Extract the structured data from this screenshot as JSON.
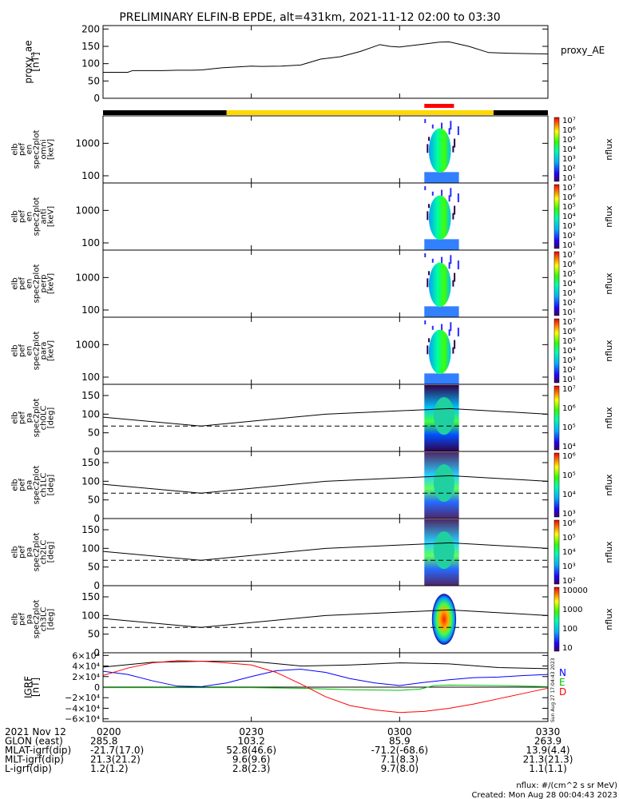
{
  "title": "PRELIMINARY ELFIN-B EPDE, alt=431km, 2021-11-12 02:00 to 03:30",
  "chart_data": {
    "type": "spectrogram",
    "x_range": [
      "2021-11-12 02:00",
      "2021-11-12 03:30"
    ],
    "x_ticks": [
      "0200",
      "0230",
      "0300",
      "0330"
    ],
    "grid": false,
    "status_bar": [
      {
        "from": "02:00",
        "to": "02:25",
        "color": "#000000"
      },
      {
        "from": "02:25",
        "to": "03:19",
        "color": "#ffd800"
      },
      {
        "from": "03:19",
        "to": "03:30",
        "color": "#000000"
      }
    ],
    "science_zone_marker": {
      "from": "03:05",
      "to": "03:11",
      "color": "#ff0000"
    },
    "active_interval": [
      "03:05",
      "03:12"
    ],
    "panels": [
      {
        "id": "proxy_ae",
        "type": "line",
        "ylabel": [
          "proxy_ae",
          "[nT]"
        ],
        "legend": "proxy_AE",
        "ylim": [
          0,
          210
        ],
        "yticks": [
          "200",
          "150",
          "100",
          "50",
          "0"
        ],
        "series": [
          {
            "name": "proxy_AE",
            "x": [
              "02:00",
              "02:05",
              "02:06",
              "02:12",
              "02:15",
              "02:18",
              "02:20",
              "02:24",
              "02:30",
              "02:32",
              "02:36",
              "02:40",
              "02:44",
              "02:48",
              "02:52",
              "02:56",
              "02:58",
              "03:00",
              "03:04",
              "03:08",
              "03:10",
              "03:14",
              "03:18",
              "03:22",
              "03:26",
              "03:30"
            ],
            "y": [
              75,
              75,
              80,
              80,
              81,
              81,
              82,
              88,
              93,
              92,
              93,
              96,
              113,
              120,
              135,
              155,
              150,
              148,
              155,
              162,
              163,
              150,
              132,
              130,
              129,
              128
            ]
          }
        ]
      },
      {
        "id": "en_omni",
        "type": "spectrogram",
        "ylabel": [
          "elb",
          "pef",
          "en",
          "spec2plot",
          "omni",
          "[keV]"
        ],
        "yscale": "log",
        "ylim": [
          60,
          7000
        ],
        "yticks": [
          "1000",
          "100"
        ],
        "colorbar": {
          "label": "nflux",
          "ticks": [
            "10⁷",
            "10⁶",
            "10⁵",
            "10⁴",
            "10³",
            "10²",
            "10¹"
          ]
        }
      },
      {
        "id": "en_anti",
        "type": "spectrogram",
        "ylabel": [
          "elb",
          "pef",
          "en",
          "spec2plot",
          "anti",
          "[keV]"
        ],
        "yscale": "log",
        "ylim": [
          60,
          7000
        ],
        "yticks": [
          "1000",
          "100"
        ],
        "colorbar": {
          "label": "nflux",
          "ticks": [
            "10⁷",
            "10⁶",
            "10⁵",
            "10⁴",
            "10³",
            "10²",
            "10¹"
          ]
        }
      },
      {
        "id": "en_perp",
        "type": "spectrogram",
        "ylabel": [
          "elb",
          "pef",
          "en",
          "spec2plot",
          "perp",
          "[keV]"
        ],
        "yscale": "log",
        "ylim": [
          60,
          7000
        ],
        "yticks": [
          "1000",
          "100"
        ],
        "colorbar": {
          "label": "nflux",
          "ticks": [
            "10⁷",
            "10⁶",
            "10⁵",
            "10⁴",
            "10³",
            "10²",
            "10¹"
          ]
        }
      },
      {
        "id": "en_para",
        "type": "spectrogram",
        "ylabel": [
          "elb",
          "pef",
          "en",
          "spec2plot",
          "para",
          "[keV]"
        ],
        "yscale": "log",
        "ylim": [
          60,
          7000
        ],
        "yticks": [
          "1000",
          "100"
        ],
        "colorbar": {
          "label": "nflux",
          "ticks": [
            "10⁷",
            "10⁶",
            "10⁵",
            "10⁴",
            "10³",
            "10²",
            "10¹"
          ]
        }
      },
      {
        "id": "pa_ch0",
        "type": "spectrogram",
        "ylabel": [
          "elb",
          "pef",
          "pa",
          "spec2plot",
          "ch0LC",
          "[deg]"
        ],
        "ylim": [
          0,
          180
        ],
        "yticks": [
          "150",
          "100",
          "50",
          "0"
        ],
        "colorbar": {
          "label": "nflux",
          "ticks": [
            "10⁷",
            "10⁶",
            "10⁵",
            "10⁴"
          ]
        }
      },
      {
        "id": "pa_ch1",
        "type": "spectrogram",
        "ylabel": [
          "elb",
          "pef",
          "pa",
          "spec2plot",
          "ch1LC",
          "[deg]"
        ],
        "ylim": [
          0,
          180
        ],
        "yticks": [
          "150",
          "100",
          "50",
          "0"
        ],
        "colorbar": {
          "label": "nflux",
          "ticks": [
            "10⁶",
            "10⁵",
            "10⁴",
            "10³"
          ]
        }
      },
      {
        "id": "pa_ch2",
        "type": "spectrogram",
        "ylabel": [
          "elb",
          "pef",
          "pa",
          "spec2plot",
          "ch2LC",
          "[deg]"
        ],
        "ylim": [
          0,
          180
        ],
        "yticks": [
          "150",
          "100",
          "50",
          "0"
        ],
        "colorbar": {
          "label": "nflux",
          "ticks": [
            "10⁶",
            "10⁵",
            "10⁴",
            "10³",
            "10²"
          ]
        }
      },
      {
        "id": "pa_ch3",
        "type": "spectrogram",
        "ylabel": [
          "elb",
          "pef",
          "pa",
          "spec2plot",
          "ch3LC",
          "[deg]"
        ],
        "ylim": [
          0,
          180
        ],
        "yticks": [
          "150",
          "100",
          "50",
          "0"
        ],
        "colorbar": {
          "label": "nflux",
          "ticks": [
            "10000",
            "1000",
            "100",
            "10"
          ]
        }
      },
      {
        "id": "igrf",
        "type": "line",
        "ylabel": [
          "IGRF",
          "[nT]"
        ],
        "ylim": [
          -65000,
          65000
        ],
        "yticks": [
          "6×10⁴",
          "4×10⁴",
          "2×10⁴",
          "0",
          "−2×10⁴",
          "−4×10⁴",
          "−6×10⁴"
        ],
        "legend": [
          {
            "label": "N",
            "color": "#0000ff"
          },
          {
            "label": "E",
            "color": "#00c000"
          },
          {
            "label": "D",
            "color": "#ff0000"
          }
        ],
        "series": [
          {
            "color": "#000000",
            "x": [
              "02:00",
              "02:10",
              "02:20",
              "02:30",
              "02:40",
              "02:50",
              "03:00",
              "03:10",
              "03:20",
              "03:30"
            ],
            "y": [
              38000,
              47000,
              49000,
              49000,
              40000,
              42000,
              46000,
              44000,
              37000,
              35000
            ]
          },
          {
            "color": "#0000ff",
            "x": [
              "02:00",
              "02:05",
              "02:10",
              "02:15",
              "02:20",
              "02:25",
              "02:30",
              "02:35",
              "02:40",
              "02:45",
              "02:50",
              "02:55",
              "03:00",
              "03:05",
              "03:10",
              "03:15",
              "03:20",
              "03:25",
              "03:30"
            ],
            "y": [
              30000,
              24000,
              12000,
              2000,
              1000,
              8000,
              20000,
              31000,
              34000,
              28000,
              16000,
              8000,
              3000,
              9000,
              14000,
              18000,
              19000,
              22000,
              24000
            ]
          },
          {
            "color": "#00c000",
            "x": [
              "02:00",
              "02:10",
              "02:20",
              "02:30",
              "02:40",
              "02:50",
              "03:00",
              "03:04",
              "03:07",
              "03:10",
              "03:20",
              "03:30"
            ],
            "y": [
              -1000,
              -1000,
              -1000,
              -1000,
              -2000,
              -5000,
              -6000,
              -4000,
              3000,
              4000,
              3000,
              1000
            ]
          },
          {
            "color": "#ff0000",
            "x": [
              "02:00",
              "02:05",
              "02:10",
              "02:15",
              "02:20",
              "02:25",
              "02:30",
              "02:35",
              "02:40",
              "02:45",
              "02:50",
              "02:55",
              "03:00",
              "03:05",
              "03:10",
              "03:15",
              "03:20",
              "03:25",
              "03:30"
            ],
            "y": [
              22000,
              36000,
              46000,
              50000,
              49000,
              46000,
              42000,
              28000,
              6000,
              -18000,
              -35000,
              -43000,
              -48000,
              -46000,
              -40000,
              -32000,
              -22000,
              -12000,
              -2000
            ]
          }
        ]
      }
    ],
    "orbit_table": {
      "row_labels": [
        "2021 Nov 12",
        "GLON (east)",
        "MLAT-igrf(dip)",
        "MLT-igrf(dip)",
        "L-igrf(dip)"
      ],
      "columns": [
        [
          "0200",
          "285.8",
          "-21.7(17.0)",
          "21.3(21.2)",
          "1.2(1.2)"
        ],
        [
          "0230",
          "103.2",
          "52.8(46.6)",
          "9.6(9.6)",
          "2.8(2.3)"
        ],
        [
          "0300",
          "85.9",
          "-71.2(-68.6)",
          "7.1(8.3)",
          "9.7(8.0)"
        ],
        [
          "0330",
          "263.9",
          "13.9(4.4)",
          "21.3(21.3)",
          "1.1(1.1)"
        ]
      ]
    }
  },
  "footer": {
    "units": "nflux: #/(cm^2 s sr MeV)",
    "created": "Created: Mon Aug 28 00:04:43 2023",
    "side_stamp": "Sun Aug 27 17:04:43 2023"
  }
}
